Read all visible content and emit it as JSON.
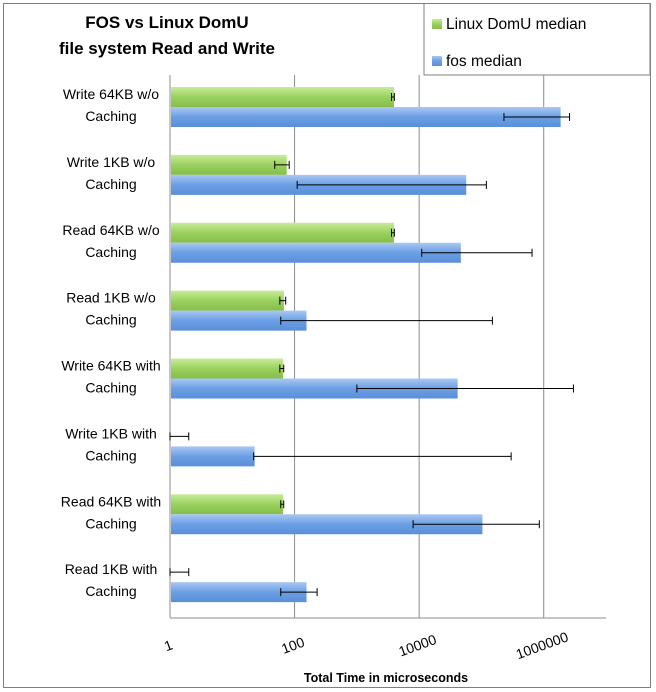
{
  "chart_data": {
    "type": "bar",
    "orientation": "horizontal",
    "title_lines": [
      "FOS vs Linux DomU",
      "file system Read and Write"
    ],
    "xlabel": "Total Time in microseconds",
    "ylabel": "",
    "x_scale": "log",
    "xlim": [
      1,
      10000000
    ],
    "x_ticks": [
      1,
      100,
      10000,
      1000000
    ],
    "x_tick_labels": [
      "1",
      "100",
      "10000",
      "1000000"
    ],
    "grid": "vertical major gridlines",
    "legend_position": "top-right",
    "categories": [
      [
        "Write 64KB w/o",
        "Caching"
      ],
      [
        "Write 1KB w/o",
        "Caching"
      ],
      [
        "Read 64KB w/o",
        "Caching"
      ],
      [
        "Read 1KB w/o",
        "Caching"
      ],
      [
        "Write 64KB with",
        "Caching"
      ],
      [
        "Write 1KB with",
        "Caching"
      ],
      [
        "Read 64KB with",
        "Caching"
      ],
      [
        "Read 1KB with",
        "Caching"
      ]
    ],
    "series": [
      {
        "name": "Linux DomU median",
        "color": "#9bd15f",
        "values": [
          3800,
          72,
          3800,
          65,
          63,
          1,
          63,
          1
        ],
        "error_low": [
          3600,
          48,
          3600,
          58,
          58,
          1,
          60,
          1
        ],
        "error_high": [
          4000,
          82,
          4000,
          72,
          67,
          2,
          67,
          2
        ]
      },
      {
        "name": "fos median",
        "color": "#6b9fe4",
        "values": [
          1800000,
          55000,
          45000,
          150,
          40000,
          22,
          100000,
          150
        ],
        "error_low": [
          230000,
          110,
          11000,
          60,
          1000,
          22,
          8000,
          60
        ],
        "error_high": [
          2600000,
          120000,
          650000,
          150000,
          3000000,
          300000,
          850000,
          230
        ]
      }
    ]
  }
}
